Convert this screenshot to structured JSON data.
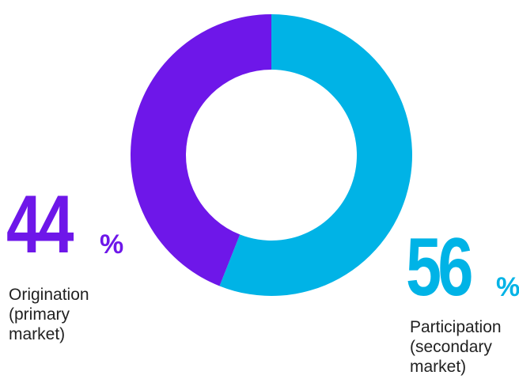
{
  "chart_data": {
    "type": "pie",
    "donut": true,
    "slices": [
      {
        "label_lines": [
          "Participation",
          "(secondary",
          "market)"
        ],
        "value": 56,
        "display": "56",
        "unit": "%",
        "color": "#00b3e6"
      },
      {
        "label_lines": [
          "Origination",
          "(primary",
          "market)"
        ],
        "value": 44,
        "display": "44",
        "unit": "%",
        "color": "#6e17e9"
      }
    ]
  }
}
